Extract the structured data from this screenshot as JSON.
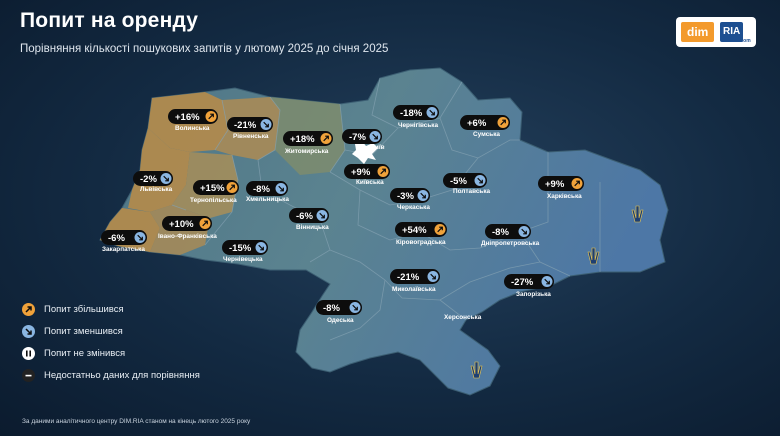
{
  "title": "Попит на оренду",
  "subtitle": "Порівняння кількості пошукових запитів у лютому 2025 до січня 2025",
  "logo": {
    "dim": "dim",
    "ria": "RIA",
    "ua": ".com"
  },
  "colors": {
    "up": "#f0a23a",
    "down": "#8ab6e2",
    "same": "#ffffff",
    "nodata": "#222222",
    "pill": "#0d0d0d"
  },
  "regions": [
    {
      "name": "Волинська",
      "change": "+16%",
      "trend": "up"
    },
    {
      "name": "Рівненська",
      "change": "-21%",
      "trend": "down"
    },
    {
      "name": "Житомирська",
      "change": "+18%",
      "trend": "up"
    },
    {
      "name": "Київ",
      "change": "-7%",
      "trend": "down"
    },
    {
      "name": "Чернігівська",
      "change": "-18%",
      "trend": "down"
    },
    {
      "name": "Сумська",
      "change": "+6%",
      "trend": "up"
    },
    {
      "name": "Львівська",
      "change": "-2%",
      "trend": "down"
    },
    {
      "name": "Тернопільська",
      "change": "+15%",
      "trend": "up"
    },
    {
      "name": "Хмельницька",
      "change": "-8%",
      "trend": "down"
    },
    {
      "name": "Київська",
      "change": "+9%",
      "trend": "up"
    },
    {
      "name": "Полтавська",
      "change": "-5%",
      "trend": "down"
    },
    {
      "name": "Харківська",
      "change": "+9%",
      "trend": "up"
    },
    {
      "name": "Черкаська",
      "change": "-3%",
      "trend": "down"
    },
    {
      "name": "Івано-Франківська",
      "change": "+10%",
      "trend": "up"
    },
    {
      "name": "Вінницька",
      "change": "-6%",
      "trend": "down"
    },
    {
      "name": "Закарпатська",
      "change": "-6%",
      "trend": "down"
    },
    {
      "name": "Чернівецька",
      "change": "-15%",
      "trend": "down"
    },
    {
      "name": "Кіровоградська",
      "change": "+54%",
      "trend": "up"
    },
    {
      "name": "Дніпропетровська",
      "change": "-8%",
      "trend": "down"
    },
    {
      "name": "Миколаївська",
      "change": "-21%",
      "trend": "down"
    },
    {
      "name": "Запорізька",
      "change": "-27%",
      "trend": "down"
    },
    {
      "name": "Одеська",
      "change": "-8%",
      "trend": "down"
    },
    {
      "name": "Херсонська",
      "change": "",
      "trend": "none"
    }
  ],
  "legend": [
    {
      "label": "Попит збільшився",
      "icon": "arrow-up-right-icon",
      "color": "#f0a23a"
    },
    {
      "label": "Попит зменшився",
      "icon": "arrow-down-right-icon",
      "color": "#8ab6e2"
    },
    {
      "label": "Попит не змінився",
      "icon": "pause-icon",
      "color": "#ffffff"
    },
    {
      "label": "Недостатньо даних для порівняння",
      "icon": "minus-icon",
      "color": "#222222"
    }
  ],
  "footnote": "За даними аналітичного центру DIM.RIA станом на кінець лютого 2025 року"
}
